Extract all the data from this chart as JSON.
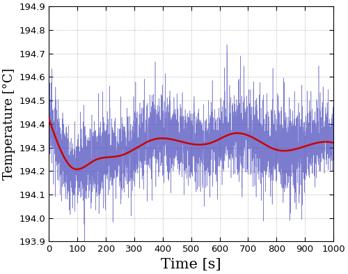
{
  "title": "",
  "xlabel": "Time [s]",
  "ylabel": "Temperature [°C]",
  "xlim": [
    0,
    1000
  ],
  "ylim": [
    193.9,
    194.9
  ],
  "yticks": [
    193.9,
    194.0,
    194.1,
    194.2,
    194.3,
    194.4,
    194.5,
    194.6,
    194.7,
    194.8,
    194.9
  ],
  "xticks": [
    0,
    100,
    200,
    300,
    400,
    500,
    600,
    700,
    800,
    900,
    1000
  ],
  "blue_color": "#4444bb",
  "blue_alpha": 0.7,
  "red_color": "#cc0000",
  "background_color": "#ffffff",
  "n_points": 4000,
  "seed": 17,
  "base_temp": 194.3,
  "noise_std": 0.075,
  "red_t": [
    0,
    30,
    80,
    160,
    250,
    370,
    430,
    500,
    570,
    650,
    720,
    800,
    900,
    1000
  ],
  "red_y": [
    194.42,
    194.32,
    194.215,
    194.245,
    194.265,
    194.335,
    194.335,
    194.315,
    194.32,
    194.36,
    194.34,
    194.29,
    194.305,
    194.32
  ],
  "grid_color": "#aaaaaa",
  "grid_linestyle": ":",
  "grid_linewidth": 0.7,
  "blue_linewidth": 0.4,
  "red_linewidth": 1.8,
  "xlabel_fontsize": 15,
  "ylabel_fontsize": 13,
  "tick_fontsize": 9.5,
  "figure_width": 5.0,
  "figure_height": 3.93,
  "dpi": 100
}
